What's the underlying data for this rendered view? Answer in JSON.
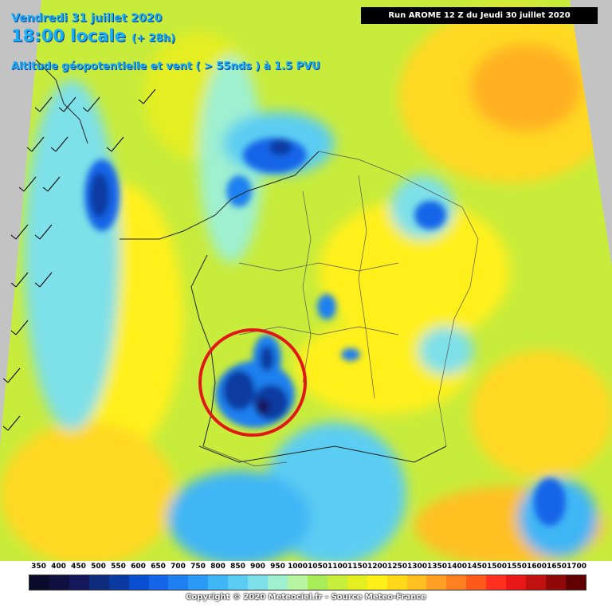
{
  "header": {
    "date": "Vendredi 31 juillet 2020",
    "time": "18:00 locale",
    "offset": "(+ 28h)",
    "layer": "Altitude géopotentielle et vent ( > 55nds ) à 1.5 PVU"
  },
  "run": "Run AROME 12 Z du Jeudi 30 juillet 2020",
  "legend": {
    "ticks": [
      "350",
      "400",
      "450",
      "500",
      "550",
      "600",
      "650",
      "700",
      "750",
      "800",
      "850",
      "900",
      "950",
      "1000",
      "1050",
      "1100",
      "1150",
      "1200",
      "1250",
      "1300",
      "1350",
      "1400",
      "1450",
      "1500",
      "1550",
      "1600",
      "1650",
      "1700"
    ],
    "colors": [
      "#0a0a2a",
      "#0f1040",
      "#14185a",
      "#0e2a7a",
      "#0a3aa0",
      "#0a4fd0",
      "#1565e8",
      "#1e80f0",
      "#2b9af5",
      "#3fb6f5",
      "#5ccdf2",
      "#7ee0e8",
      "#9ef0d0",
      "#b8f5a0",
      "#a8ec5a",
      "#c6ee3a",
      "#e4ee20",
      "#fff01a",
      "#ffd81a",
      "#ffc020",
      "#ffa024",
      "#ff8020",
      "#ff5a1a",
      "#ff3020",
      "#e81818",
      "#c01010",
      "#900808",
      "#600000"
    ]
  },
  "copyright": "Copyright © 2020 Meteociel.fr - Source Meteo-France"
}
